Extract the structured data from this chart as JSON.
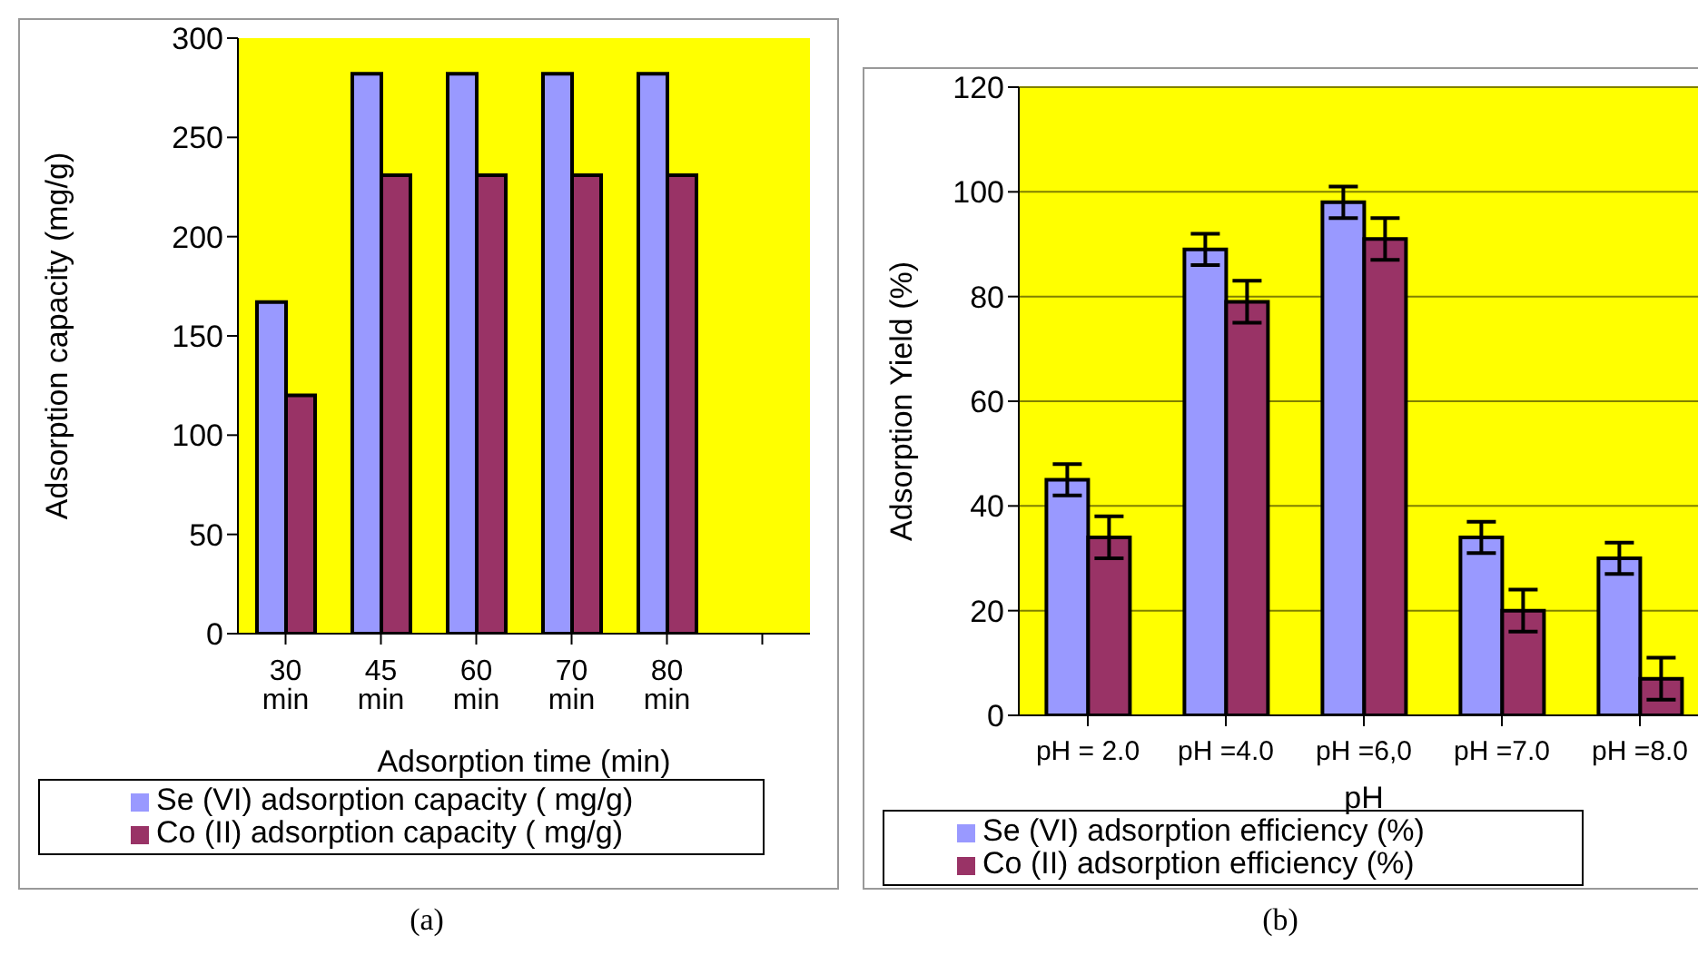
{
  "chart_data": [
    {
      "type": "bar",
      "xlabel": "Adsorption time (min)",
      "ylabel": "Adsorption capacity (mg/g)",
      "categories": [
        "30 min",
        "45 min",
        "60 min",
        "70 min",
        "80 min",
        null
      ],
      "series": [
        {
          "name": "Se (VI) adsorption capacity ( mg/g)",
          "color": "#9999ff",
          "values": [
            167,
            282,
            282,
            282,
            282,
            null
          ]
        },
        {
          "name": "Co (II) adsorption capacity ( mg/g)",
          "color": "#993366",
          "values": [
            120,
            231,
            231,
            231,
            231,
            null
          ]
        }
      ],
      "ylim": [
        0,
        300
      ],
      "yticks": [
        0,
        50,
        100,
        150,
        200,
        250,
        300
      ],
      "grid": false,
      "legend": "bottom",
      "annotations": [
        "(a)"
      ]
    },
    {
      "type": "bar",
      "xlabel": "pH",
      "ylabel": "Adsorption Yield (%)",
      "categories": [
        "pH = 2.0",
        "pH =4.0",
        "pH =6,0",
        "pH =7.0",
        "pH =8.0"
      ],
      "series": [
        {
          "name": "Se (VI) adsorption efficiency (%)",
          "color": "#9999ff",
          "values": [
            45,
            89,
            98,
            34,
            30
          ],
          "errors": [
            3,
            3,
            3,
            3,
            3
          ]
        },
        {
          "name": "Co (II) adsorption efficiency (%)",
          "color": "#993366",
          "values": [
            34,
            79,
            91,
            20,
            7
          ],
          "errors": [
            4,
            4,
            4,
            4,
            4
          ]
        }
      ],
      "ylim": [
        0,
        120
      ],
      "yticks": [
        0,
        20,
        40,
        60,
        80,
        100,
        120
      ],
      "grid": "y",
      "legend": "bottom",
      "annotations": [
        "(b)"
      ]
    }
  ]
}
